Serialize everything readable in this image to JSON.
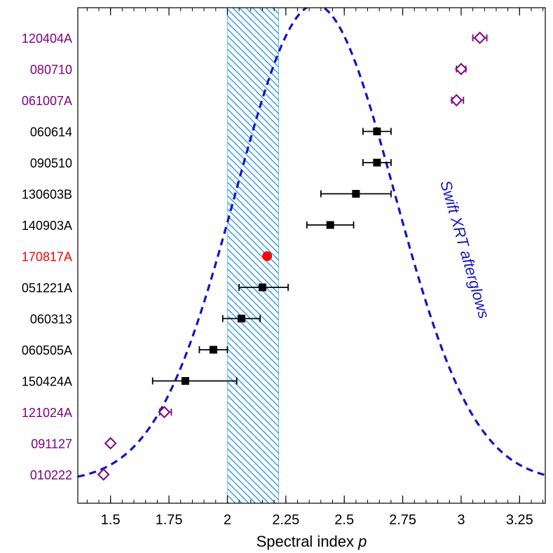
{
  "chart_data": {
    "type": "scatter",
    "xlabel_text": "Spectral index ",
    "xlabel_symbol": "p",
    "xlim": [
      1.36,
      3.36
    ],
    "xticks": [
      1.5,
      1.75,
      2,
      2.25,
      2.5,
      2.75,
      3,
      3.25
    ],
    "xtick_labels": [
      "1.5",
      "1.75",
      "2",
      "2.25",
      "2.5",
      "2.75",
      "3",
      "3.25"
    ],
    "band": {
      "from": 2.0,
      "to": 2.22,
      "color": "#2196f3"
    },
    "curve": {
      "label": "Swift XRT afterglows",
      "color": "#1414c8",
      "peak_x": 2.375,
      "sigma": 0.34
    },
    "colors": {
      "purple": "#800080",
      "black": "#000000",
      "red": "#ff0000"
    },
    "rows": [
      {
        "label": "120404A",
        "x": 3.08,
        "lo": 3.05,
        "hi": 3.11,
        "marker": "diamond",
        "color": "#800080"
      },
      {
        "label": "080710",
        "x": 3.0,
        "lo": 2.98,
        "hi": 3.02,
        "marker": "diamond",
        "color": "#800080"
      },
      {
        "label": "061007A",
        "x": 2.98,
        "lo": 2.96,
        "hi": 3.01,
        "marker": "diamond",
        "color": "#800080"
      },
      {
        "label": "060614",
        "x": 2.64,
        "lo": 2.58,
        "hi": 2.7,
        "marker": "square",
        "color": "#000000"
      },
      {
        "label": "090510",
        "x": 2.64,
        "lo": 2.58,
        "hi": 2.7,
        "marker": "square",
        "color": "#000000"
      },
      {
        "label": "130603B",
        "x": 2.55,
        "lo": 2.4,
        "hi": 2.7,
        "marker": "square",
        "color": "#000000"
      },
      {
        "label": "140903A",
        "x": 2.44,
        "lo": 2.34,
        "hi": 2.54,
        "marker": "square",
        "color": "#000000"
      },
      {
        "label": "170817A",
        "x": 2.17,
        "lo": null,
        "hi": null,
        "marker": "circle",
        "color": "#ff0000"
      },
      {
        "label": "051221A",
        "x": 2.15,
        "lo": 2.05,
        "hi": 2.26,
        "marker": "square",
        "color": "#000000"
      },
      {
        "label": "060313",
        "x": 2.06,
        "lo": 1.98,
        "hi": 2.14,
        "marker": "square",
        "color": "#000000"
      },
      {
        "label": "060505A",
        "x": 1.94,
        "lo": 1.88,
        "hi": 2.0,
        "marker": "square",
        "color": "#000000"
      },
      {
        "label": "150424A",
        "x": 1.82,
        "lo": 1.68,
        "hi": 2.04,
        "marker": "square",
        "color": "#000000"
      },
      {
        "label": "121024A",
        "x": 1.73,
        "lo": 1.71,
        "hi": 1.76,
        "marker": "diamond",
        "color": "#800080"
      },
      {
        "label": "091127",
        "x": 1.5,
        "lo": null,
        "hi": null,
        "marker": "diamond",
        "color": "#800080"
      },
      {
        "label": "010222",
        "x": 1.47,
        "lo": null,
        "hi": null,
        "marker": "diamond",
        "color": "#800080"
      }
    ]
  }
}
